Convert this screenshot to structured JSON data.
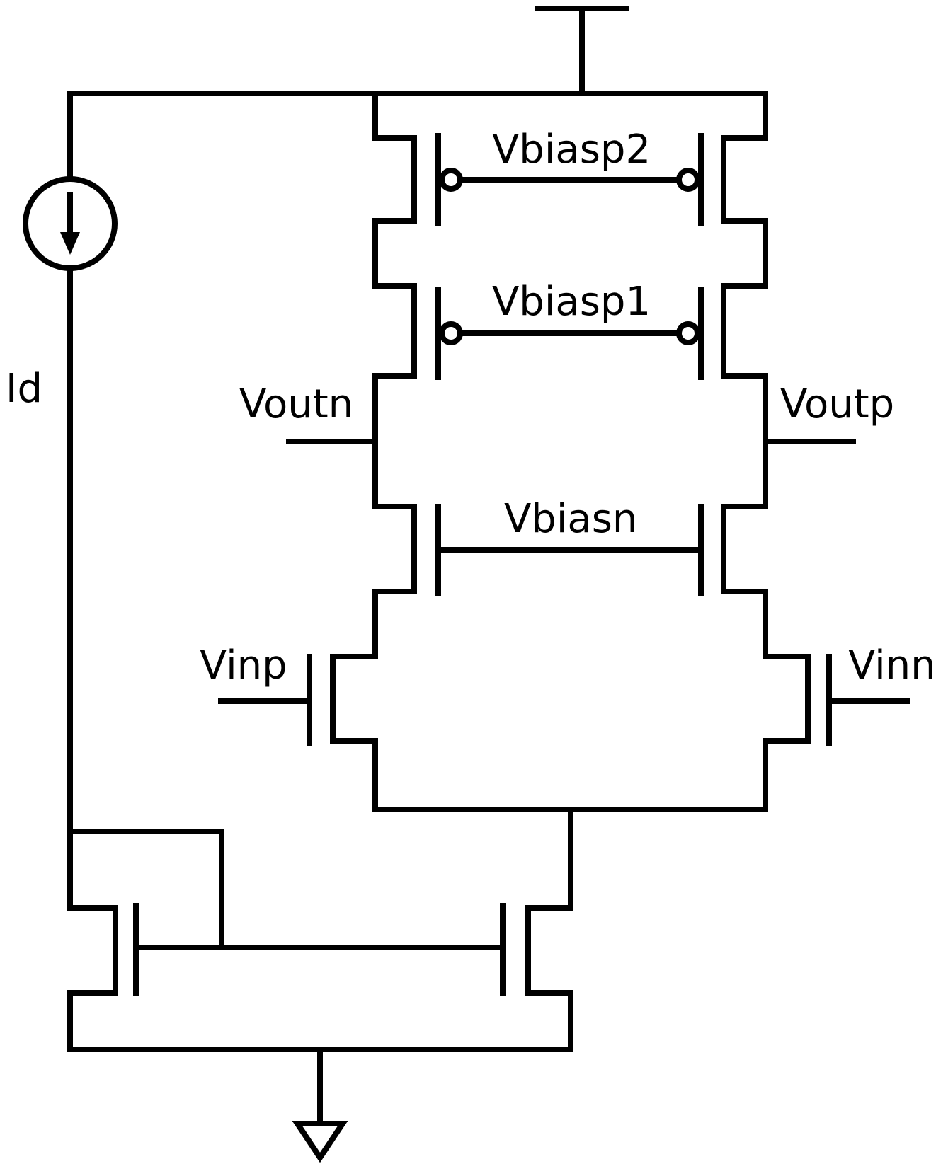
{
  "labels": {
    "vbiasp2": "Vbiasp2",
    "vbiasp1": "Vbiasp1",
    "vbiasn": "Vbiasn",
    "voutn": "Voutn",
    "voutp": "Voutp",
    "vinp": "Vinp",
    "vinn": "Vinn",
    "id": "Id"
  },
  "colors": {
    "stroke": "#000000",
    "background": "#ffffff"
  }
}
